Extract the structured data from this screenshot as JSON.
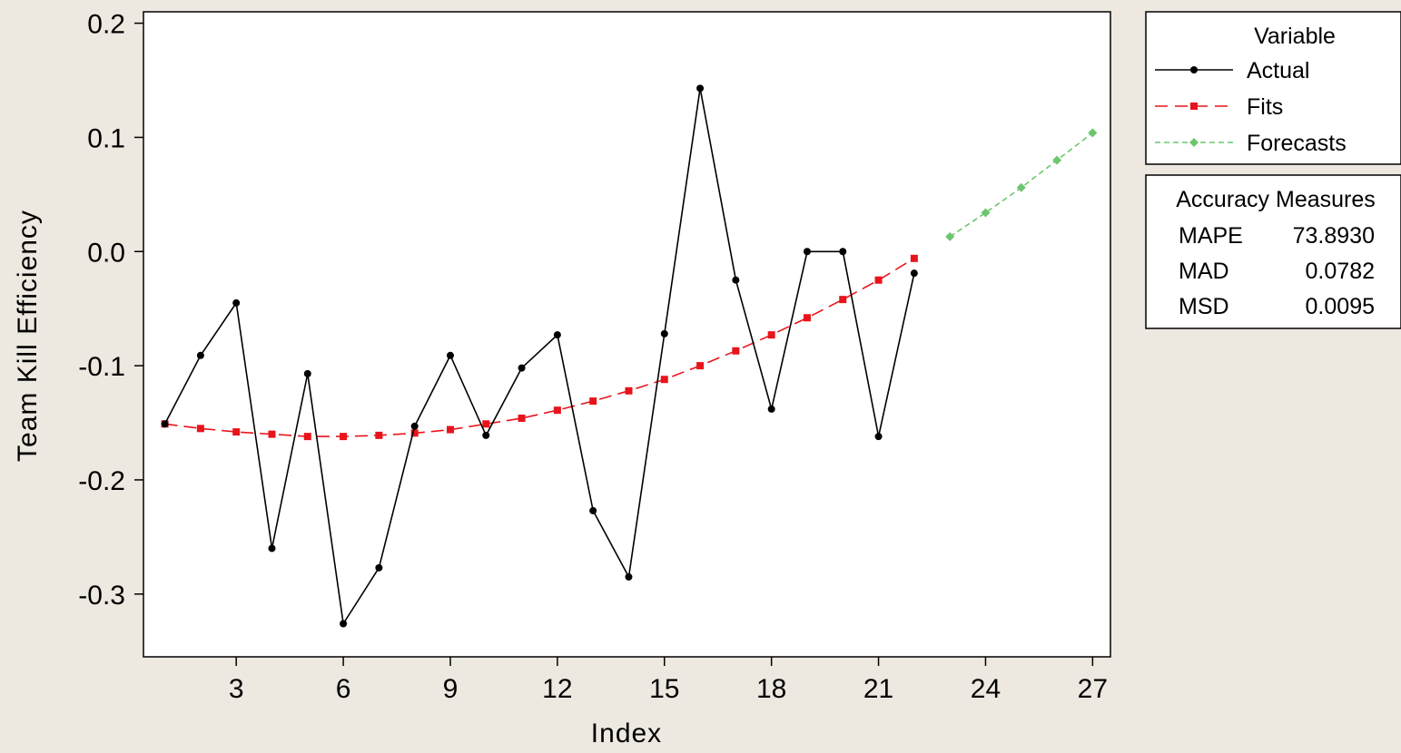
{
  "chart_data": {
    "type": "line",
    "xlabel": "Index",
    "ylabel": "Team Kill Efficiency",
    "xlim": [
      0.4,
      27.5
    ],
    "ylim": [
      -0.355,
      0.21
    ],
    "x_ticks": [
      3,
      6,
      9,
      12,
      15,
      18,
      21,
      24,
      27
    ],
    "y_ticks": [
      0.2,
      0.1,
      0.0,
      -0.1,
      -0.2,
      -0.3
    ],
    "y_tick_labels": [
      "0.2",
      "0.1",
      "0.0",
      "-0.1",
      "-0.2",
      "-0.3"
    ],
    "grid": false,
    "legend_title": "Variable",
    "legend_position": "top-right, outside plot",
    "series": [
      {
        "name": "Actual",
        "color": "#000000",
        "marker": "circle",
        "line": "solid",
        "x": [
          1,
          2,
          3,
          4,
          5,
          6,
          7,
          8,
          9,
          10,
          11,
          12,
          13,
          14,
          15,
          16,
          17,
          18,
          19,
          20,
          21,
          22
        ],
        "values": [
          -0.151,
          -0.091,
          -0.045,
          -0.26,
          -0.107,
          -0.326,
          -0.277,
          -0.153,
          -0.091,
          -0.161,
          -0.102,
          -0.073,
          -0.227,
          -0.285,
          -0.072,
          0.143,
          -0.025,
          -0.138,
          0.0,
          0.0,
          -0.162,
          -0.019
        ]
      },
      {
        "name": "Fits",
        "color": "#e8141b",
        "marker": "square",
        "line": "dashed",
        "x": [
          1,
          2,
          3,
          4,
          5,
          6,
          7,
          8,
          9,
          10,
          11,
          12,
          13,
          14,
          15,
          16,
          17,
          18,
          19,
          20,
          21,
          22
        ],
        "values": [
          -0.151,
          -0.155,
          -0.158,
          -0.16,
          -0.162,
          -0.162,
          -0.161,
          -0.159,
          -0.156,
          -0.151,
          -0.146,
          -0.139,
          -0.131,
          -0.122,
          -0.112,
          -0.1,
          -0.087,
          -0.073,
          -0.058,
          -0.042,
          -0.025,
          -0.006
        ]
      },
      {
        "name": "Forecasts",
        "color": "#6cc66e",
        "marker": "diamond",
        "line": "short-dashed",
        "x": [
          23,
          24,
          25,
          26,
          27
        ],
        "values": [
          0.013,
          0.034,
          0.056,
          0.08,
          0.104
        ]
      }
    ],
    "accuracy_measures": {
      "title": "Accuracy Measures",
      "rows": [
        {
          "label": "MAPE",
          "value": "73.8930"
        },
        {
          "label": "MAD",
          "value": "0.0782"
        },
        {
          "label": "MSD",
          "value": "0.0095"
        }
      ]
    }
  }
}
